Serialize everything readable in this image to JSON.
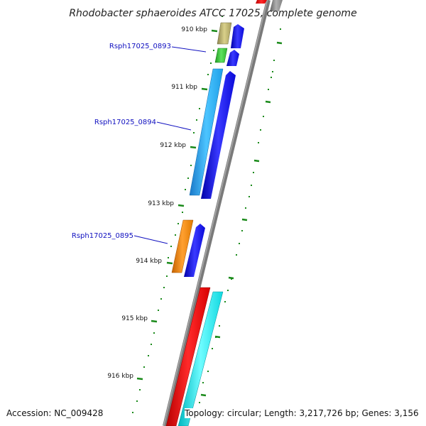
{
  "title": "Rhodobacter sphaeroides ATCC 17025, complete genome",
  "footer": {
    "accession": "Accession: NC_009428",
    "topology": "Topology: circular; Length: 3,217,726 bp; Genes: 3,156"
  },
  "colors": {
    "backbone": "#8a8a8a",
    "tick": "#1a8a1a",
    "label_line": "#1010c0",
    "orf": "#1515e6"
  },
  "kbp_labels": [
    "910 kbp",
    "911 kbp",
    "912 kbp",
    "913 kbp",
    "914 kbp",
    "915 kbp",
    "916 kbp"
  ],
  "gene_labels": [
    "Rsph17025_0893",
    "Rsph17025_0894",
    "Rsph17025_0895"
  ]
}
